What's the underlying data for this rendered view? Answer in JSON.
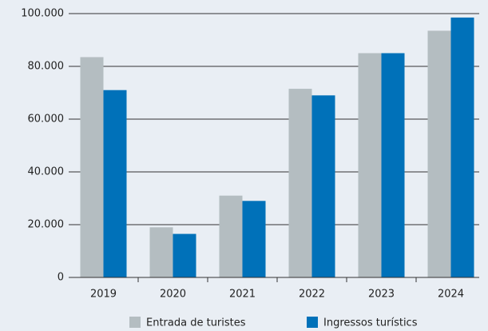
{
  "chart_data": {
    "type": "bar",
    "categories": [
      "2019",
      "2020",
      "2021",
      "2022",
      "2023",
      "2024"
    ],
    "series": [
      {
        "name": "Entrada de turistes",
        "color": "#b4bdc1",
        "values": [
          83500,
          19000,
          31000,
          71500,
          85000,
          93500
        ]
      },
      {
        "name": "Ingressos turístics",
        "color": "#0071b9",
        "values": [
          71000,
          16500,
          29000,
          69000,
          85000,
          98500
        ]
      }
    ],
    "ylim": [
      0,
      100000
    ],
    "yticks": [
      0,
      {
        "value": 20000,
        "label": "20.000"
      },
      {
        "value": 40000,
        "label": "40.000"
      },
      {
        "value": 60000,
        "label": "60.000"
      },
      {
        "value": 80000,
        "label": "80.000"
      },
      {
        "value": 100000,
        "label": "100.000"
      }
    ],
    "grid": true,
    "legend": "bottom"
  }
}
